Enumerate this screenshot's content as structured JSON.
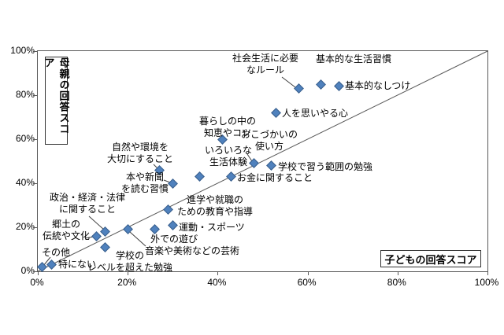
{
  "axes": {
    "y_label": "母親の回答スコア",
    "x_label": "子どもの回答スコア",
    "y_ticks": [
      "100%",
      "80%",
      "60%",
      "40%",
      "20%",
      "0%"
    ],
    "x_ticks": [
      "0%",
      "20%",
      "40%",
      "60%",
      "80%",
      "100%"
    ]
  },
  "colors": {
    "marker_fill": "#4F81BD",
    "marker_border": "#385D8A",
    "axis_line": "#595959",
    "text": "#000000",
    "background": "#FFFFFF"
  },
  "chart_data": {
    "type": "scatter",
    "title": "",
    "xlabel": "子どもの回答スコア",
    "ylabel": "母親の回答スコア",
    "xlim": [
      0,
      100
    ],
    "ylim": [
      0,
      100
    ],
    "unit": "%",
    "grid": false,
    "legend": "none",
    "reference_line": {
      "type": "diagonal",
      "from": [
        0,
        0
      ],
      "to": [
        100,
        100
      ]
    },
    "marker": "diamond",
    "points": [
      {
        "label": "基本的な生活習慣",
        "label_lines": [
          "基本的な生活習慣"
        ],
        "x": 63,
        "y": 85
      },
      {
        "label": "基本的なしつけ",
        "label_lines": [
          "基本的なしつけ"
        ],
        "x": 67,
        "y": 84
      },
      {
        "label": "社会生活に必要なルール",
        "label_lines": [
          "社会生活に必要",
          "なルール"
        ],
        "x": 58,
        "y": 83
      },
      {
        "label": "人を思いやる心",
        "label_lines": [
          "人を思いやる心"
        ],
        "x": 53,
        "y": 72
      },
      {
        "label": "暮らしの中の知恵やコツ",
        "label_lines": [
          "暮らしの中の",
          "知恵やコツ"
        ],
        "x": 41,
        "y": 60
      },
      {
        "label": "おこづかいの使い方",
        "label_lines": [
          "おこづかいの",
          "使い方"
        ],
        "x": 48,
        "y": 49
      },
      {
        "label": "学校で習う範囲の勉強",
        "label_lines": [
          "学校で習う範囲の勉強"
        ],
        "x": 52,
        "y": 48
      },
      {
        "label": "お金に関すること",
        "label_lines": [
          "お金に関すること"
        ],
        "x": 43,
        "y": 43
      },
      {
        "label": "いろいろな生活体験",
        "label_lines": [
          "いろいろな",
          "生活体験"
        ],
        "x": 36,
        "y": 43
      },
      {
        "label": "自然や環境を大切にすること",
        "label_lines": [
          "自然や環境を",
          "大切にすること"
        ],
        "x": 27,
        "y": 46
      },
      {
        "label": "本や新聞を読む習慣",
        "label_lines": [
          "本や新聞",
          "を読む習慣"
        ],
        "x": 30,
        "y": 40
      },
      {
        "label": "進学や就職のための教育や指導",
        "label_lines": [
          "進学や就職の",
          "ための教育や指導"
        ],
        "x": 29,
        "y": 28
      },
      {
        "label": "運動・スポーツ",
        "label_lines": [
          "運動・スポーツ"
        ],
        "x": 30,
        "y": 21
      },
      {
        "label": "外での遊び",
        "label_lines": [
          "外での遊び"
        ],
        "x": 26,
        "y": 19
      },
      {
        "label": "音楽や美術などの芸術",
        "label_lines": [
          "音楽や美術などの芸術"
        ],
        "x": 20,
        "y": 19
      },
      {
        "label": "政治・経済・法律に関すること",
        "label_lines": [
          "政治・経済・法律",
          "に関すること"
        ],
        "x": 15,
        "y": 18
      },
      {
        "label": "郷土の伝統や文化",
        "label_lines": [
          "郷土の",
          "伝統や文化"
        ],
        "x": 13,
        "y": 16
      },
      {
        "label": "学校のレベルを超えた勉強",
        "label_lines": [
          "学校の",
          "レベルを超えた勉強"
        ],
        "x": 15,
        "y": 11
      },
      {
        "label": "特にない",
        "label_lines": [
          "特にない"
        ],
        "x": 3,
        "y": 3
      },
      {
        "label": "その他",
        "label_lines": [
          "その他"
        ],
        "x": 1,
        "y": 2
      }
    ]
  }
}
